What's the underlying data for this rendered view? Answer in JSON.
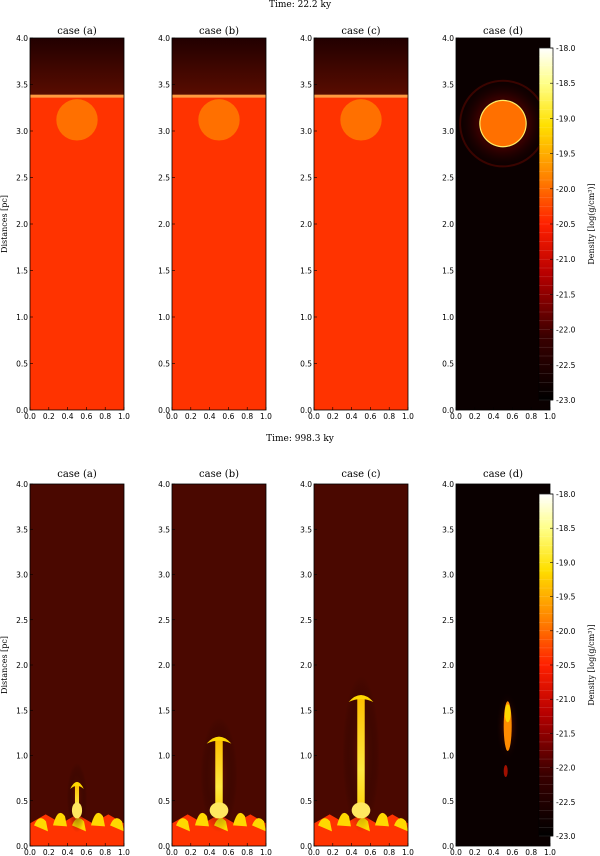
{
  "chart_data": [
    {
      "type": "heatmap",
      "title": "Time: 22.2 ky",
      "panels": [
        {
          "name": "case (a)",
          "field": "layered",
          "interface_y": 3.38,
          "cloud": {
            "cx": 0.5,
            "cy": 3.12,
            "r": 0.22
          }
        },
        {
          "name": "case (b)",
          "field": "layered",
          "interface_y": 3.38,
          "cloud": {
            "cx": 0.5,
            "cy": 3.12,
            "r": 0.22
          }
        },
        {
          "name": "case (c)",
          "field": "layered",
          "interface_y": 3.38,
          "cloud": {
            "cx": 0.5,
            "cy": 3.12,
            "r": 0.22
          }
        },
        {
          "name": "case (d)",
          "field": "uniform-low",
          "cloud": {
            "cx": 0.5,
            "cy": 3.08,
            "r": 0.24
          }
        }
      ],
      "xlim": [
        0.0,
        1.0
      ],
      "ylim": [
        0.0,
        4.0
      ],
      "xticks": [
        "0.0",
        "0.2",
        "0.4",
        "0.6",
        "0.8",
        "1.0"
      ],
      "yticks": [
        "0.0",
        "0.5",
        "1.0",
        "1.5",
        "2.0",
        "2.5",
        "3.0",
        "3.5",
        "4.0"
      ],
      "ylabel": "Distances [pc]",
      "colorbar": {
        "label": "Density [log(g/cm³)]",
        "range": [
          -23.0,
          -18.0
        ],
        "ticks": [
          "-18.0",
          "-18.5",
          "-19.0",
          "-19.5",
          "-20.0",
          "-20.5",
          "-21.0",
          "-21.5",
          "-22.0",
          "-22.5",
          "-23.0"
        ]
      }
    },
    {
      "type": "heatmap",
      "title": "Time: 998.3 ky",
      "panels": [
        {
          "name": "case (a)",
          "field": "layered-evolved",
          "plume_top": 0.72,
          "plume_width": 0.12
        },
        {
          "name": "case (b)",
          "field": "layered-evolved",
          "plume_top": 1.22,
          "plume_width": 0.22
        },
        {
          "name": "case (c)",
          "field": "layered-evolved",
          "plume_top": 1.68,
          "plume_width": 0.22
        },
        {
          "name": "case (d)",
          "field": "uniform-low",
          "plume_top": 1.6,
          "plume_width": 0.08
        }
      ],
      "xlim": [
        0.0,
        1.0
      ],
      "ylim": [
        0.0,
        4.0
      ],
      "xticks": [
        "0.0",
        "0.2",
        "0.4",
        "0.6",
        "0.8",
        "1.0"
      ],
      "yticks": [
        "0.0",
        "0.5",
        "1.0",
        "1.5",
        "2.0",
        "2.5",
        "3.0",
        "3.5",
        "4.0"
      ],
      "ylabel": "Distances [pc]",
      "colorbar": {
        "label": "Density [log(g/cm³)]",
        "range": [
          -23.0,
          -18.0
        ],
        "ticks": [
          "-18.0",
          "-18.5",
          "-19.0",
          "-19.5",
          "-20.0",
          "-20.5",
          "-21.0",
          "-21.5",
          "-22.0",
          "-22.5",
          "-23.0"
        ]
      }
    }
  ],
  "colors": {
    "background_red": "#ff3300",
    "upper_dark": "#3a0600",
    "evolved_dark": "#4a0800",
    "uniform_black": "#0a0000",
    "cloud_orange": "#ff7000",
    "plume_yellow": "#ffd800",
    "rim_yellow": "#ffee66"
  }
}
